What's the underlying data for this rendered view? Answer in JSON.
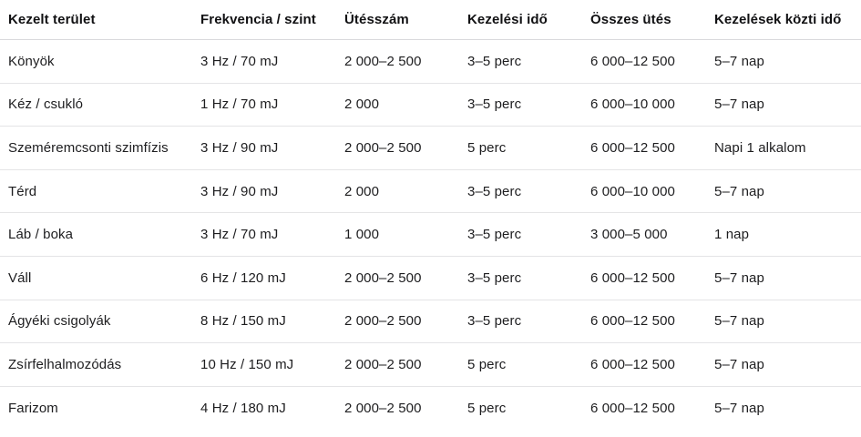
{
  "table": {
    "headers": [
      "Kezelt terület",
      "Frekvencia / szint",
      "Ütésszám",
      "Kezelési idő",
      "Összes ütés",
      "Kezelések közti idő"
    ],
    "rows": [
      [
        "Könyök",
        "3 Hz / 70 mJ",
        "2 000–2 500",
        "3–5 perc",
        "6 000–12 500",
        "5–7 nap"
      ],
      [
        "Kéz / csukló",
        "1 Hz / 70 mJ",
        "2 000",
        "3–5 perc",
        "6 000–10 000",
        "5–7 nap"
      ],
      [
        "Szeméremcsonti szimfízis",
        "3 Hz / 90 mJ",
        "2 000–2 500",
        "5 perc",
        "6 000–12 500",
        "Napi 1 alkalom"
      ],
      [
        "Térd",
        "3 Hz / 90 mJ",
        "2 000",
        "3–5 perc",
        "6 000–10 000",
        "5–7 nap"
      ],
      [
        "Láb / boka",
        "3 Hz / 70 mJ",
        "1 000",
        "3–5 perc",
        "3 000–5 000",
        "1 nap"
      ],
      [
        "Váll",
        "6 Hz / 120 mJ",
        "2 000–2 500",
        "3–5 perc",
        "6 000–12 500",
        "5–7 nap"
      ],
      [
        "Ágyéki csigolyák",
        "8 Hz / 150 mJ",
        "2 000–2 500",
        "3–5 perc",
        "6 000–12 500",
        "5–7 nap"
      ],
      [
        "Zsírfelhalmozódás",
        "10 Hz / 150 mJ",
        "2 000–2 500",
        "5 perc",
        "6 000–12 500",
        "5–7 nap"
      ],
      [
        "Farizom",
        "4 Hz / 180 mJ",
        "2 000–2 500",
        "5 perc",
        "6 000–12 500",
        "5–7 nap"
      ]
    ]
  }
}
